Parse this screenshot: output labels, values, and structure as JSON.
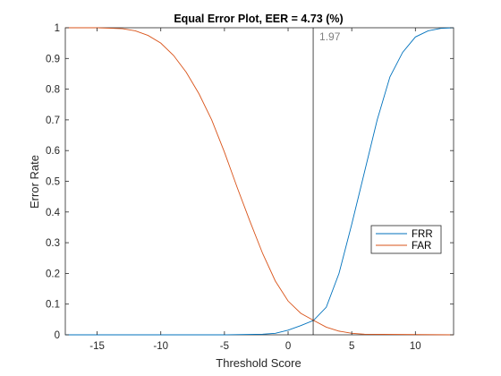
{
  "chart_data": {
    "type": "line",
    "title": "Equal Error Plot, EER = 4.73 (%)",
    "xlabel": "Threshold Score",
    "ylabel": "Error Rate",
    "xlim": [
      -17.5,
      13
    ],
    "ylim": [
      0,
      1
    ],
    "xticks": [
      -15,
      -10,
      -5,
      0,
      5,
      10
    ],
    "xtick_labels": [
      "-15",
      "-10",
      "-5",
      "0",
      "5",
      "10"
    ],
    "yticks": [
      0,
      0.1,
      0.2,
      0.3,
      0.4,
      0.5,
      0.6,
      0.7,
      0.8,
      0.9,
      1
    ],
    "ytick_labels": [
      "0",
      "0.1",
      "0.2",
      "0.3",
      "0.4",
      "0.5",
      "0.6",
      "0.7",
      "0.8",
      "0.9",
      "1"
    ],
    "grid": false,
    "legend_placement": "right",
    "series": [
      {
        "name": "FRR",
        "color": "#0072BD",
        "x": [
          -17.5,
          -10,
          -5,
          -2,
          -1,
          0,
          1,
          2,
          3,
          4,
          5,
          6,
          7,
          8,
          9,
          10,
          11,
          12,
          13
        ],
        "y": [
          0,
          0,
          0,
          0.002,
          0.005,
          0.015,
          0.03,
          0.047,
          0.09,
          0.2,
          0.36,
          0.53,
          0.7,
          0.84,
          0.92,
          0.97,
          0.99,
          0.998,
          1
        ]
      },
      {
        "name": "FAR",
        "color": "#D95319",
        "x": [
          -17.5,
          -15,
          -13,
          -12,
          -11,
          -10,
          -9,
          -8,
          -7,
          -6,
          -5,
          -4,
          -3,
          -2,
          -1,
          0,
          1,
          2,
          3,
          4,
          5,
          6,
          13
        ],
        "y": [
          1,
          1,
          0.997,
          0.99,
          0.975,
          0.95,
          0.91,
          0.855,
          0.785,
          0.7,
          0.595,
          0.48,
          0.37,
          0.265,
          0.175,
          0.11,
          0.07,
          0.047,
          0.025,
          0.012,
          0.005,
          0.002,
          0
        ]
      }
    ],
    "threshold_line": {
      "x": 1.97,
      "label": "1.97",
      "line_color": "#000000",
      "label_color": "#808080"
    }
  }
}
